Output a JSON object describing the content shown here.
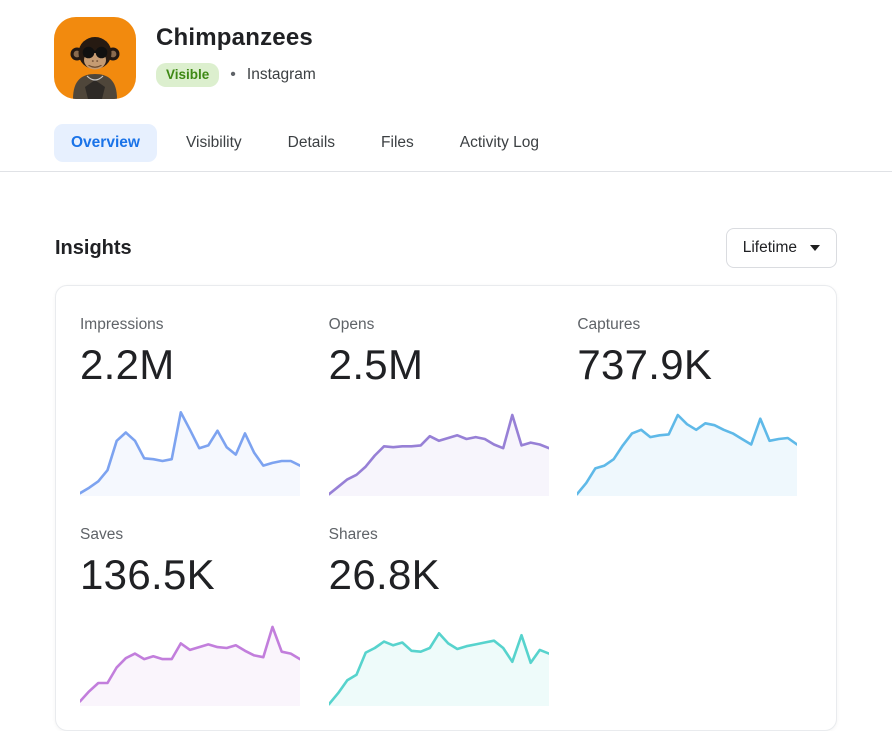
{
  "header": {
    "title": "Chimpanzees",
    "status_badge": "Visible",
    "separator": "•",
    "platform": "Instagram",
    "avatar_bg_color": "#F28A0E"
  },
  "tabs": [
    {
      "label": "Overview",
      "active": true
    },
    {
      "label": "Visibility",
      "active": false
    },
    {
      "label": "Details",
      "active": false
    },
    {
      "label": "Files",
      "active": false
    },
    {
      "label": "Activity Log",
      "active": false
    }
  ],
  "insights": {
    "title": "Insights",
    "range_selector_value": "Lifetime"
  },
  "colors": {
    "accent_blue": "#1A73E8",
    "tab_active_bg": "#E7F0FE",
    "badge_bg": "#DCEFCE",
    "badge_text": "#3E8914",
    "label_gray": "#5F6368",
    "divider": "#E0E2E6",
    "card_border": "#E9EBEE"
  },
  "chart_data": [
    {
      "type": "area",
      "title": "Impressions",
      "value_label": "2.2M",
      "line_color": "#7DA3F0",
      "fill_color": "rgba(125,163,240,0.08)",
      "ylim": [
        0,
        100
      ],
      "values": [
        3,
        9,
        16,
        28,
        60,
        69,
        60,
        41,
        40,
        38,
        40,
        91,
        72,
        52,
        55,
        71,
        53,
        45,
        68,
        47,
        33,
        36,
        38,
        38,
        33
      ]
    },
    {
      "type": "area",
      "title": "Opens",
      "value_label": "2.5M",
      "line_color": "#9780D6",
      "fill_color": "rgba(151,128,214,0.08)",
      "ylim": [
        0,
        100
      ],
      "values": [
        2,
        10,
        18,
        23,
        32,
        44,
        54,
        53,
        54,
        54,
        55,
        65,
        60,
        63,
        66,
        62,
        64,
        62,
        56,
        52,
        88,
        55,
        58,
        56,
        52
      ]
    },
    {
      "type": "area",
      "title": "Captures",
      "value_label": "737.9K",
      "line_color": "#5FB9E8",
      "fill_color": "rgba(95,185,232,0.10)",
      "ylim": [
        0,
        100
      ],
      "values": [
        2,
        14,
        30,
        33,
        40,
        55,
        68,
        72,
        64,
        66,
        67,
        88,
        78,
        72,
        79,
        77,
        72,
        68,
        62,
        56,
        84,
        60,
        62,
        63,
        56
      ]
    },
    {
      "type": "area",
      "title": "Saves",
      "value_label": "136.5K",
      "line_color": "#C27EDC",
      "fill_color": "rgba(194,126,220,0.08)",
      "ylim": [
        0,
        100
      ],
      "values": [
        5,
        16,
        25,
        25,
        42,
        52,
        57,
        51,
        54,
        51,
        51,
        68,
        61,
        64,
        67,
        64,
        63,
        66,
        60,
        55,
        53,
        86,
        59,
        57,
        51
      ]
    },
    {
      "type": "area",
      "title": "Shares",
      "value_label": "26.8K",
      "line_color": "#57D3CD",
      "fill_color": "rgba(87,211,205,0.10)",
      "ylim": [
        0,
        100
      ],
      "values": [
        2,
        14,
        28,
        34,
        58,
        63,
        70,
        66,
        69,
        60,
        59,
        63,
        79,
        68,
        62,
        65,
        67,
        69,
        71,
        63,
        48,
        77,
        47,
        61,
        57
      ]
    }
  ]
}
